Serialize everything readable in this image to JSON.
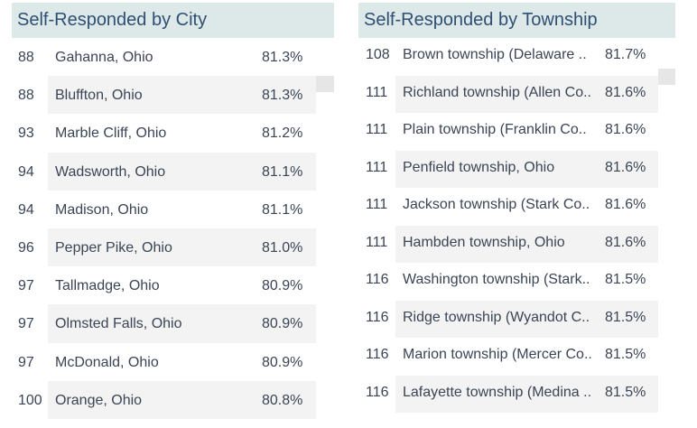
{
  "city": {
    "title": "Self-Responded by City",
    "rows": [
      {
        "rank": "88",
        "name": "Gahanna, Ohio",
        "pct": "81.3%"
      },
      {
        "rank": "88",
        "name": "Bluffton, Ohio",
        "pct": "81.3%"
      },
      {
        "rank": "93",
        "name": "Marble Cliff, Ohio",
        "pct": "81.2%"
      },
      {
        "rank": "94",
        "name": "Wadsworth, Ohio",
        "pct": "81.1%"
      },
      {
        "rank": "94",
        "name": "Madison, Ohio",
        "pct": "81.1%"
      },
      {
        "rank": "96",
        "name": "Pepper Pike, Ohio",
        "pct": "81.0%"
      },
      {
        "rank": "97",
        "name": "Tallmadge, Ohio",
        "pct": "80.9%"
      },
      {
        "rank": "97",
        "name": "Olmsted Falls, Ohio",
        "pct": "80.9%"
      },
      {
        "rank": "97",
        "name": "McDonald, Ohio",
        "pct": "80.9%"
      },
      {
        "rank": "100",
        "name": "Orange, Ohio",
        "pct": "80.8%"
      }
    ]
  },
  "township": {
    "title": "Self-Responded by Township",
    "rows": [
      {
        "rank": "108",
        "name": "Brown township (Delaware ..",
        "pct": "81.7%"
      },
      {
        "rank": "111",
        "name": "Richland township (Allen Co..",
        "pct": "81.6%"
      },
      {
        "rank": "111",
        "name": "Plain township (Franklin Co..",
        "pct": "81.6%"
      },
      {
        "rank": "111",
        "name": "Penfield township, Ohio",
        "pct": "81.6%"
      },
      {
        "rank": "111",
        "name": "Jackson township (Stark Co..",
        "pct": "81.6%"
      },
      {
        "rank": "111",
        "name": "Hambden township, Ohio",
        "pct": "81.6%"
      },
      {
        "rank": "116",
        "name": "Washington township (Stark..",
        "pct": "81.5%"
      },
      {
        "rank": "116",
        "name": "Ridge township (Wyandot C..",
        "pct": "81.5%"
      },
      {
        "rank": "116",
        "name": "Marion township (Mercer Co..",
        "pct": "81.5%"
      },
      {
        "rank": "116",
        "name": "Lafayette township (Medina ..",
        "pct": "81.5%"
      }
    ]
  },
  "colors": {
    "header_bg": "#dde8e8",
    "header_text": "#2f4f73",
    "band": "#f3f3f3",
    "text": "#3a4555"
  }
}
